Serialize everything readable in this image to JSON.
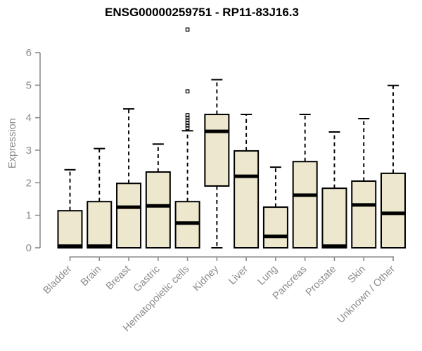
{
  "chart_data": {
    "type": "boxplot",
    "title": "ENSG00000259751 - RP11-83J16.3",
    "ylabel": "Expression",
    "xlabel": "",
    "ylim": [
      0,
      6
    ],
    "yticks": [
      0,
      1,
      2,
      3,
      4,
      5,
      6
    ],
    "grid": false,
    "legend": "none",
    "colors": {
      "box_fill": "#EDE7CD",
      "box_stroke": "#000000",
      "median": "#000000",
      "whisker": "#000000",
      "axis": "#8c8c8c",
      "tick_text": "#8c8c8c",
      "title_text": "#000000",
      "background": "#ffffff"
    },
    "categories": [
      "Bladder",
      "Brain",
      "Breast",
      "Gastric",
      "Hematopoietic cells",
      "Kidney",
      "Liver",
      "Lung",
      "Pancreas",
      "Prostate",
      "Skin",
      "Unknown / Other"
    ],
    "boxes": [
      {
        "category": "Bladder",
        "whisker_low": 0,
        "q1": 0,
        "median": 0.05,
        "q3": 1.14,
        "whisker_high": 2.4,
        "outliers": []
      },
      {
        "category": "Brain",
        "whisker_low": 0,
        "q1": 0,
        "median": 0.05,
        "q3": 1.42,
        "whisker_high": 3.05,
        "outliers": []
      },
      {
        "category": "Breast",
        "whisker_low": 0,
        "q1": 0,
        "median": 1.25,
        "q3": 1.98,
        "whisker_high": 4.27,
        "outliers": []
      },
      {
        "category": "Gastric",
        "whisker_low": 0,
        "q1": 0,
        "median": 1.29,
        "q3": 2.33,
        "whisker_high": 3.19,
        "outliers": []
      },
      {
        "category": "Hematopoietic cells",
        "whisker_low": 0,
        "q1": 0,
        "median": 0.76,
        "q3": 1.42,
        "whisker_high": 3.6,
        "outliers": [
          3.68,
          3.76,
          3.84,
          3.92,
          4.0,
          4.08,
          4.81,
          6.71
        ]
      },
      {
        "category": "Kidney",
        "whisker_low": 0,
        "q1": 1.9,
        "median": 3.58,
        "q3": 4.1,
        "whisker_high": 5.17,
        "outliers": []
      },
      {
        "category": "Liver",
        "whisker_low": 0,
        "q1": 0,
        "median": 2.2,
        "q3": 2.98,
        "whisker_high": 4.1,
        "outliers": []
      },
      {
        "category": "Lung",
        "whisker_low": 0,
        "q1": 0,
        "median": 0.35,
        "q3": 1.25,
        "whisker_high": 2.48,
        "outliers": []
      },
      {
        "category": "Pancreas",
        "whisker_low": 0,
        "q1": 0,
        "median": 1.62,
        "q3": 2.65,
        "whisker_high": 4.1,
        "outliers": []
      },
      {
        "category": "Prostate",
        "whisker_low": 0,
        "q1": 0,
        "median": 0.05,
        "q3": 1.83,
        "whisker_high": 3.56,
        "outliers": []
      },
      {
        "category": "Skin",
        "whisker_low": 0,
        "q1": 0,
        "median": 1.32,
        "q3": 2.05,
        "whisker_high": 3.97,
        "outliers": []
      },
      {
        "category": "Unknown / Other",
        "whisker_low": 0,
        "q1": 0,
        "median": 1.06,
        "q3": 2.29,
        "whisker_high": 4.99,
        "outliers": []
      }
    ]
  }
}
